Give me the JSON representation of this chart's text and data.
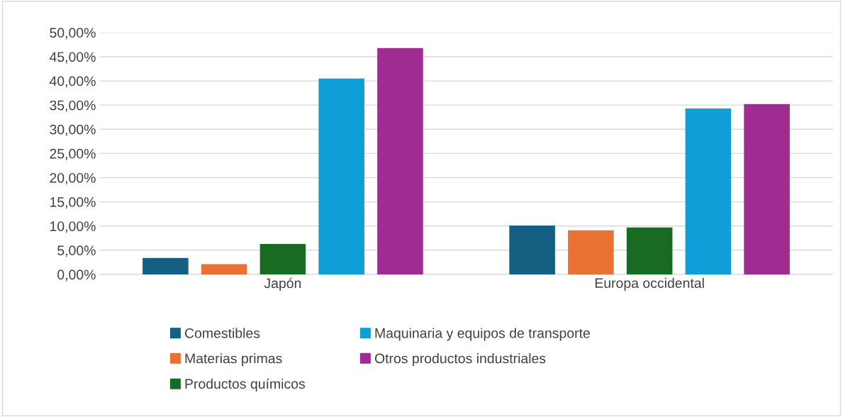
{
  "chart_data": {
    "type": "bar",
    "categories": [
      "Japón",
      "Europa occidental"
    ],
    "series": [
      {
        "name": "Comestibles",
        "color": "#156082",
        "values": [
          3.4,
          10.1
        ]
      },
      {
        "name": "Materias primas",
        "color": "#e97132",
        "values": [
          2.1,
          9.1
        ]
      },
      {
        "name": "Productos químicos",
        "color": "#196b24",
        "values": [
          6.3,
          9.7
        ]
      },
      {
        "name": "Maquinaria y equipos de transporte",
        "color": "#0f9ed5",
        "values": [
          40.5,
          34.3
        ]
      },
      {
        "name": "Otros productos industriales",
        "color": "#a02b93",
        "values": [
          46.8,
          35.2
        ]
      }
    ],
    "ylim": [
      0,
      50
    ],
    "yticks": [
      {
        "value": 0,
        "label": "0,00%"
      },
      {
        "value": 5,
        "label": "5,00%"
      },
      {
        "value": 10,
        "label": "10,00%"
      },
      {
        "value": 15,
        "label": "15,00%"
      },
      {
        "value": 20,
        "label": "20,00%"
      },
      {
        "value": 25,
        "label": "25,00%"
      },
      {
        "value": 30,
        "label": "30,00%"
      },
      {
        "value": 35,
        "label": "35,00%"
      },
      {
        "value": 40,
        "label": "40,00%"
      },
      {
        "value": 45,
        "label": "45,00%"
      },
      {
        "value": 50,
        "label": "50,00%"
      }
    ],
    "grid": "y",
    "legend": "bottom"
  }
}
